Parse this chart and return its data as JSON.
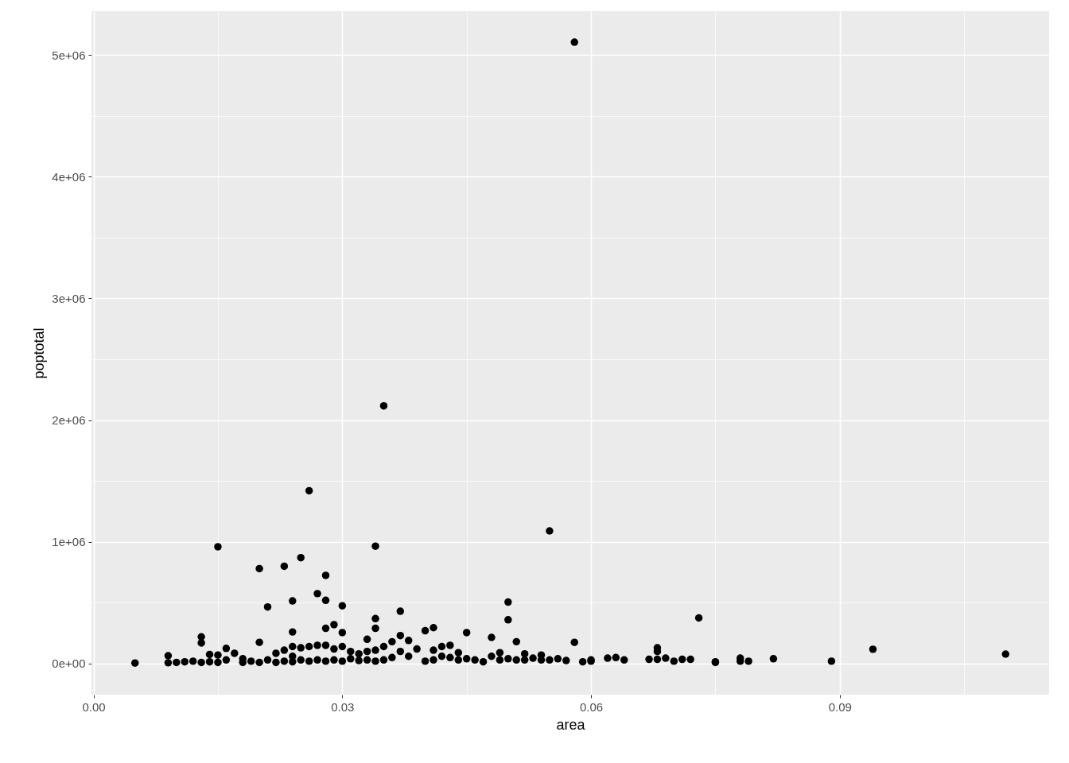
{
  "chart_data": {
    "type": "scatter",
    "xlabel": "area",
    "ylabel": "poptotal",
    "x": [
      0.005,
      0.009,
      0.009,
      0.01,
      0.011,
      0.012,
      0.013,
      0.013,
      0.013,
      0.014,
      0.014,
      0.015,
      0.015,
      0.015,
      0.016,
      0.016,
      0.017,
      0.018,
      0.018,
      0.019,
      0.02,
      0.02,
      0.02,
      0.021,
      0.021,
      0.022,
      0.022,
      0.023,
      0.023,
      0.023,
      0.024,
      0.024,
      0.024,
      0.024,
      0.024,
      0.025,
      0.025,
      0.025,
      0.026,
      0.026,
      0.026,
      0.027,
      0.027,
      0.027,
      0.028,
      0.028,
      0.028,
      0.028,
      0.028,
      0.029,
      0.029,
      0.029,
      0.03,
      0.03,
      0.03,
      0.03,
      0.031,
      0.031,
      0.032,
      0.032,
      0.033,
      0.033,
      0.033,
      0.034,
      0.034,
      0.034,
      0.034,
      0.034,
      0.035,
      0.035,
      0.035,
      0.036,
      0.036,
      0.037,
      0.037,
      0.037,
      0.038,
      0.038,
      0.039,
      0.04,
      0.04,
      0.041,
      0.041,
      0.041,
      0.042,
      0.042,
      0.043,
      0.043,
      0.044,
      0.044,
      0.045,
      0.045,
      0.046,
      0.047,
      0.048,
      0.048,
      0.049,
      0.049,
      0.05,
      0.05,
      0.05,
      0.051,
      0.051,
      0.052,
      0.052,
      0.053,
      0.054,
      0.054,
      0.055,
      0.055,
      0.056,
      0.057,
      0.058,
      0.058,
      0.059,
      0.06,
      0.06,
      0.062,
      0.063,
      0.064,
      0.067,
      0.068,
      0.068,
      0.068,
      0.069,
      0.07,
      0.071,
      0.072,
      0.073,
      0.075,
      0.075,
      0.078,
      0.078,
      0.079,
      0.082,
      0.089,
      0.094,
      0.11
    ],
    "values": [
      5000,
      65000,
      7000,
      10000,
      15000,
      20000,
      220000,
      170000,
      10000,
      75000,
      15000,
      960000,
      70000,
      10000,
      125000,
      30000,
      85000,
      40000,
      10000,
      20000,
      780000,
      175000,
      10000,
      465000,
      30000,
      85000,
      10000,
      800000,
      110000,
      20000,
      515000,
      260000,
      140000,
      60000,
      15000,
      870000,
      130000,
      30000,
      1420000,
      140000,
      20000,
      575000,
      150000,
      30000,
      725000,
      520000,
      290000,
      150000,
      20000,
      320000,
      120000,
      30000,
      475000,
      255000,
      140000,
      20000,
      100000,
      40000,
      80000,
      25000,
      200000,
      100000,
      30000,
      965000,
      370000,
      290000,
      110000,
      20000,
      2117000,
      140000,
      30000,
      180000,
      50000,
      430000,
      230000,
      100000,
      190000,
      60000,
      120000,
      270000,
      20000,
      295000,
      110000,
      30000,
      140000,
      60000,
      150000,
      50000,
      90000,
      30000,
      255000,
      40000,
      30000,
      15000,
      215000,
      60000,
      90000,
      30000,
      505000,
      360000,
      40000,
      180000,
      30000,
      80000,
      30000,
      45000,
      70000,
      30000,
      1090000,
      30000,
      40000,
      25000,
      5105000,
      175000,
      15000,
      30000,
      20000,
      45000,
      50000,
      30000,
      35000,
      130000,
      100000,
      35000,
      45000,
      20000,
      35000,
      35000,
      375000,
      15000,
      10000,
      45000,
      20000,
      20000,
      40000,
      20000,
      118000,
      78000
    ],
    "color": "#000000",
    "marker": "circle",
    "grid": true,
    "xlim": [
      -0.00025,
      0.11525
    ],
    "xticks": [
      {
        "value": 0,
        "label": "0.00"
      },
      {
        "value": 0.015,
        "label": null
      },
      {
        "value": 0.03,
        "label": "0.03"
      },
      {
        "value": 0.045,
        "label": null
      },
      {
        "value": 0.06,
        "label": "0.06"
      },
      {
        "value": 0.075,
        "label": null
      },
      {
        "value": 0.09,
        "label": "0.09"
      },
      {
        "value": 0.105,
        "label": null
      }
    ],
    "ylim": [
      -255000,
      5360000
    ],
    "yticks": [
      {
        "value": 0,
        "label": "0e+00"
      },
      {
        "value": 500000,
        "label": null
      },
      {
        "value": 1000000,
        "label": "1e+06"
      },
      {
        "value": 1500000,
        "label": null
      },
      {
        "value": 2000000,
        "label": "2e+06"
      },
      {
        "value": 2500000,
        "label": null
      },
      {
        "value": 3000000,
        "label": "3e+06"
      },
      {
        "value": 3500000,
        "label": null
      },
      {
        "value": 4000000,
        "label": "4e+06"
      },
      {
        "value": 4500000,
        "label": null
      },
      {
        "value": 5000000,
        "label": "5e+06"
      }
    ]
  }
}
